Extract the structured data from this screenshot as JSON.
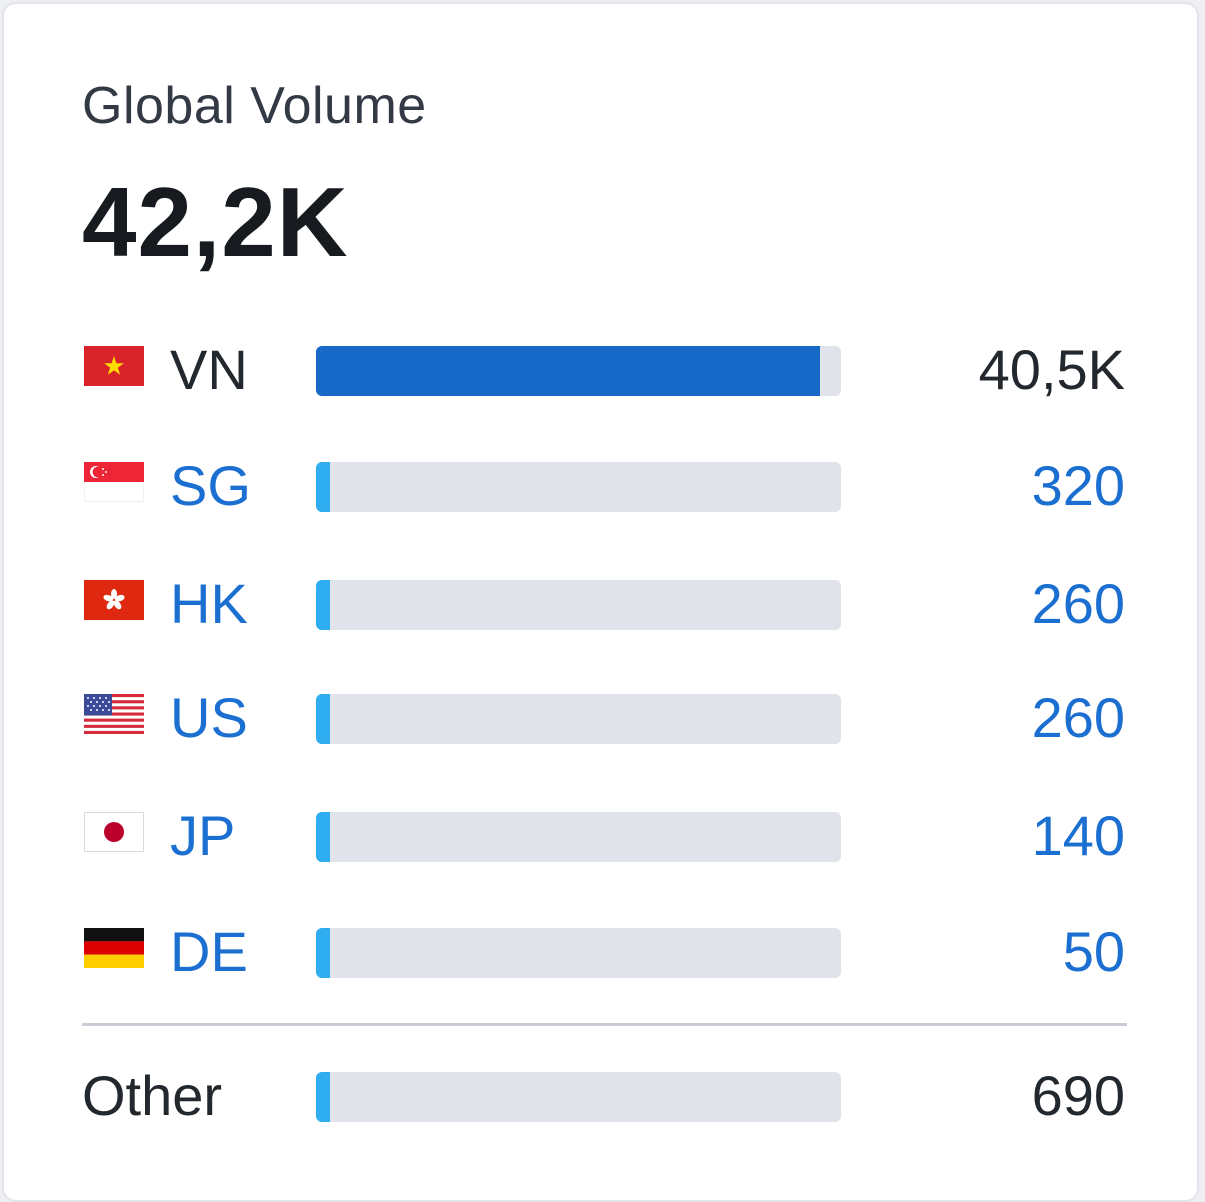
{
  "widget": {
    "title": "Global Volume",
    "total": "42,2K"
  },
  "countries": [
    {
      "code": "VN",
      "value_label": "40,5K",
      "share": 0.96,
      "bar_color": "#1769c8",
      "flag_icon": "vietnam-flag-icon"
    },
    {
      "code": "SG",
      "value_label": "320",
      "share": 0.0076,
      "bar_color": "#2eaef0",
      "flag_icon": "singapore-flag-icon"
    },
    {
      "code": "HK",
      "value_label": "260",
      "share": 0.0062,
      "bar_color": "#2eaef0",
      "flag_icon": "hong-kong-flag-icon"
    },
    {
      "code": "US",
      "value_label": "260",
      "share": 0.0062,
      "bar_color": "#2eaef0",
      "flag_icon": "usa-flag-icon"
    },
    {
      "code": "JP",
      "value_label": "140",
      "share": 0.0033,
      "bar_color": "#2eaef0",
      "flag_icon": "japan-flag-icon"
    },
    {
      "code": "DE",
      "value_label": "50",
      "share": 0.0012,
      "bar_color": "#2eaef0",
      "flag_icon": "germany-flag-icon"
    }
  ],
  "other": {
    "label": "Other",
    "value_label": "690",
    "share": 0.016,
    "bar_color": "#2eaef0"
  },
  "colors": {
    "link": "#1b6fd1",
    "primary_bar": "#1769c8",
    "secondary_bar": "#2eaef0",
    "track": "#e1e3ea"
  }
}
